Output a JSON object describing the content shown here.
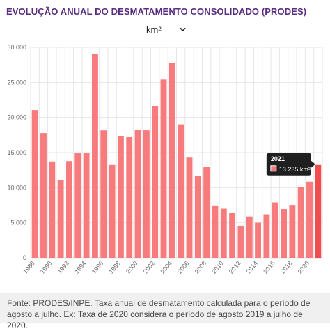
{
  "header": {
    "title": "EVOLUÇÃO ANUAL DO DESMATAMENTO CONSOLIDADO (PRODES)"
  },
  "unit_selector": {
    "selected": "km²",
    "icon": "chevron-down-icon"
  },
  "footer": {
    "source": "Fonte: PRODES/INPE. Taxa anual de desmatamento calculada para o período de agosto a julho. Ex: Taxa de 2020 considera o período de agosto 2019 a julho de 2020."
  },
  "colors": {
    "title": "#5a2d82",
    "bar": "#f77a7c",
    "bar_highlight": "#ef4d50",
    "grid": "#e6e6e6",
    "tooltip_bg": "#1f1f1f"
  },
  "tooltip": {
    "title": "2021",
    "value": "13.235 km²"
  },
  "chart_data": {
    "type": "bar",
    "title": "EVOLUÇÃO ANUAL DO DESMATAMENTO CONSOLIDADO (PRODES)",
    "xlabel": "",
    "ylabel": "",
    "ylim": [
      0,
      30000
    ],
    "yticks": [
      0,
      5000,
      10000,
      15000,
      20000,
      25000,
      30000
    ],
    "ytick_labels": [
      "0",
      "5.000",
      "10.000",
      "15.000",
      "20.000",
      "25.000",
      "30.000"
    ],
    "xtick_labels": [
      "1988",
      "1990",
      "1992",
      "1994",
      "1996",
      "1998",
      "2000",
      "2002",
      "2004",
      "2006",
      "2008",
      "2010",
      "2012",
      "2014",
      "2016",
      "2018",
      "2020"
    ],
    "categories": [
      "1988",
      "1989",
      "1990",
      "1991",
      "1992",
      "1993",
      "1994",
      "1995",
      "1996",
      "1997",
      "1998",
      "1999",
      "2000",
      "2001",
      "2002",
      "2003",
      "2004",
      "2005",
      "2006",
      "2007",
      "2008",
      "2009",
      "2010",
      "2011",
      "2012",
      "2013",
      "2014",
      "2015",
      "2016",
      "2017",
      "2018",
      "2019",
      "2020",
      "2021"
    ],
    "values": [
      21050,
      17770,
      13730,
      11030,
      13786,
      14896,
      14896,
      29059,
      18161,
      13227,
      17383,
      17259,
      18226,
      18165,
      21651,
      25396,
      27772,
      19014,
      14286,
      11651,
      12911,
      7464,
      7000,
      6418,
      4571,
      5891,
      5012,
      6207,
      7893,
      6947,
      7536,
      10129,
      10851,
      13235
    ],
    "highlight_index": 33,
    "grid": true,
    "legend": "none"
  }
}
